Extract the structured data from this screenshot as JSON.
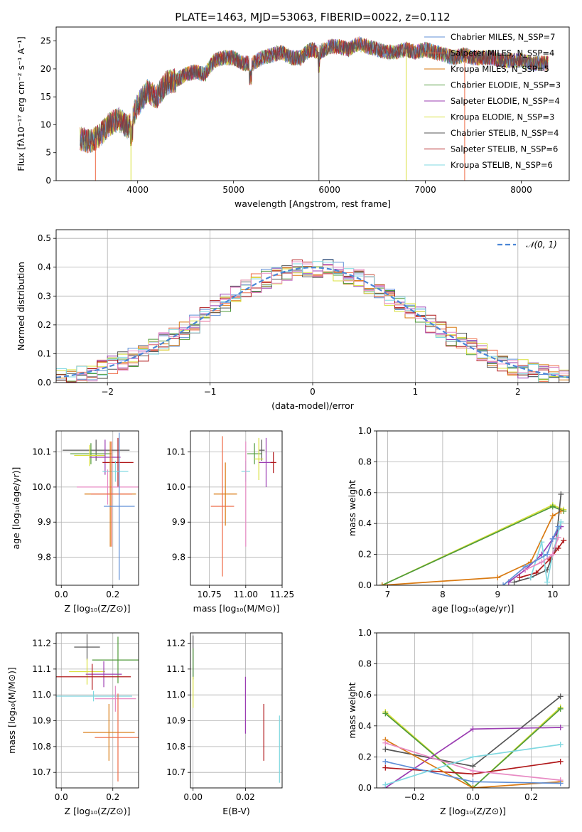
{
  "colors": {
    "chabrier_miles": "#5f8fd6",
    "salpeter_miles": "#ee6b47",
    "kroupa_miles": "#d97a12",
    "chabrier_elodie": "#4f9a3a",
    "salpeter_elodie": "#9b3db2",
    "kroupa_elodie": "#d8e03a",
    "chabrier_stelib": "#555555",
    "salpeter_stelib": "#b0181a",
    "kroupa_stelib": "#7fd8e0",
    "pink": "#e88bc4",
    "gaussian": "#4a86d6"
  },
  "chart_data": [
    {
      "type": "line",
      "title": "PLATE=1463, MJD=53063, FIBERID=0022, z=0.112",
      "xlabel": "wavelength [Angstrom, rest frame]",
      "ylabel": "Flux [fλ10⁻¹⁷ erg cm⁻² s⁻¹ A⁻¹]",
      "xlim": [
        3150,
        8500
      ],
      "ylim": [
        0,
        27.5
      ],
      "xticks": [
        "4000",
        "5000",
        "6000",
        "7000",
        "8000"
      ],
      "yticks": [
        "0",
        "5",
        "10",
        "15",
        "20",
        "25"
      ],
      "legend": "top-right",
      "legend_entries": [
        "Chabrier MILES, N_SSP=7",
        "Salpeter MILES, N_SSP=4",
        "Kroupa MILES, N_SSP=5",
        "Chabrier ELODIE, N_SSP=3",
        "Salpeter ELODIE, N_SSP=4",
        "Kroupa ELODIE, N_SSP=3",
        "Chabrier STELIB, N_SSP=4",
        "Salpeter STELIB, N_SSP=6",
        "Kroupa STELIB, N_SSP=6"
      ],
      "spectrum_envelope": {
        "x": [
          3400,
          3500,
          3600,
          3700,
          3800,
          3900,
          4000,
          4100,
          4200,
          4300,
          4400,
          4500,
          4600,
          4700,
          4800,
          4900,
          5000,
          5100,
          5200,
          5300,
          5400,
          5500,
          5600,
          5700,
          5800,
          5900,
          6000,
          6100,
          6200,
          6300,
          6400,
          6500,
          6600,
          6700,
          6800,
          6900,
          7000,
          7100,
          7200,
          7300,
          7400,
          7500,
          7600,
          7700,
          7800,
          7900,
          8000,
          8100,
          8200,
          8280
        ],
        "y": [
          7.5,
          7.0,
          8.0,
          10.0,
          11.0,
          9.5,
          13.5,
          16.0,
          15.0,
          17.5,
          18.0,
          19.0,
          19.5,
          19.0,
          21.5,
          22.0,
          22.0,
          21.0,
          21.0,
          22.0,
          22.5,
          23.0,
          22.0,
          22.0,
          23.5,
          23.0,
          24.0,
          24.0,
          23.5,
          24.5,
          24.0,
          23.5,
          23.0,
          23.0,
          23.5,
          23.0,
          23.5,
          23.0,
          22.5,
          22.0,
          22.5,
          22.0,
          22.0,
          22.0,
          21.5,
          21.5,
          21.5,
          21.0,
          21.0,
          21.0
        ]
      }
    },
    {
      "type": "bar",
      "xlabel": "(data-model)/error",
      "ylabel": "Normed distribution",
      "xlim": [
        -2.5,
        2.5
      ],
      "ylim": [
        0,
        0.53
      ],
      "xticks": [
        "−2",
        "−1",
        "0",
        "1",
        "2"
      ],
      "yticks": [
        "0.0",
        "0.1",
        "0.2",
        "0.3",
        "0.4",
        "0.5"
      ],
      "legend": "top-right",
      "legend_entries": [
        "𝒩(0, 1)"
      ],
      "bin_width": 0.1,
      "gaussian": {
        "mu": 0,
        "sigma": 1
      }
    },
    {
      "type": "scatter",
      "xlabel": "Z [log₁₀(Z/Z⊙)]",
      "ylabel": "age  [log₁₀(age/yr)]",
      "xlim": [
        -0.02,
        0.3
      ],
      "ylim": [
        9.72,
        10.16
      ],
      "xticks": [
        "0.0",
        "0.2"
      ],
      "yticks": [
        "9.8",
        "9.9",
        "10.0",
        "10.1"
      ],
      "points": [
        {
          "x": 0.135,
          "y": 10.105,
          "xerr": 0.13,
          "yerr": 0.03
        },
        {
          "x": 0.115,
          "y": 10.095,
          "xerr": 0.08,
          "yerr": 0.03
        },
        {
          "x": 0.11,
          "y": 10.09,
          "xerr": 0.06,
          "yerr": 0.03
        },
        {
          "x": 0.17,
          "y": 10.085,
          "xerr": 0.06,
          "yerr": 0.05
        },
        {
          "x": 0.22,
          "y": 10.07,
          "xerr": 0.06,
          "yerr": 0.07
        },
        {
          "x": 0.21,
          "y": 10.045,
          "xerr": 0.05,
          "yerr": 0.03
        },
        {
          "x": 0.18,
          "y": 10.0,
          "xerr": 0.12,
          "yerr": 0.05
        },
        {
          "x": 0.19,
          "y": 9.98,
          "xerr": 0.1,
          "yerr": 0.15
        },
        {
          "x": 0.195,
          "y": 9.98,
          "xerr": 0.08,
          "yerr": 0.15
        },
        {
          "x": 0.225,
          "y": 9.945,
          "xerr": 0.06,
          "yerr": 0.21
        }
      ]
    },
    {
      "type": "scatter",
      "xlabel": "mass [log₁₀(M/M⊙)]",
      "xlim": [
        10.62,
        11.25
      ],
      "ylim": [
        9.72,
        10.16
      ],
      "xticks": [
        "10.75",
        "11.00",
        "11.25"
      ],
      "yticks": [
        "9.8",
        "9.9",
        "10.0",
        "10.1"
      ],
      "points": [
        {
          "x": 11.11,
          "y": 10.105,
          "xerr": 0.02,
          "yerr": 0.03
        },
        {
          "x": 11.06,
          "y": 10.095,
          "xerr": 0.05,
          "yerr": 0.03
        },
        {
          "x": 11.09,
          "y": 10.08,
          "xerr": 0.03,
          "yerr": 0.06
        },
        {
          "x": 11.14,
          "y": 10.07,
          "xerr": 0.05,
          "yerr": 0.07
        },
        {
          "x": 11.19,
          "y": 10.07,
          "xerr": 0.02,
          "yerr": 0.03
        },
        {
          "x": 11.0,
          "y": 10.045,
          "xerr": 0.03,
          "yerr": 0.03
        },
        {
          "x": 11.0,
          "y": 9.98,
          "xerr": 0.0,
          "yerr": 0.15
        },
        {
          "x": 10.86,
          "y": 9.98,
          "xerr": 0.08,
          "yerr": 0.09
        },
        {
          "x": 10.84,
          "y": 9.945,
          "xerr": 0.08,
          "yerr": 0.2
        }
      ]
    },
    {
      "type": "line",
      "xlabel": "age  [log₁₀(age/yr)]",
      "ylabel": "mass weight",
      "xlim": [
        6.8,
        10.3
      ],
      "ylim": [
        0,
        1.0
      ],
      "xticks": [
        "7",
        "8",
        "9",
        "10"
      ],
      "yticks": [
        "0.0",
        "0.2",
        "0.4",
        "0.6",
        "0.8",
        "1.0"
      ],
      "series": [
        {
          "color_key": "kroupa_elodie",
          "x": [
            6.9,
            10.0,
            10.2
          ],
          "y": [
            0.0,
            0.52,
            0.49
          ]
        },
        {
          "color_key": "chabrier_elodie",
          "x": [
            6.9,
            10.0,
            10.2
          ],
          "y": [
            0.0,
            0.51,
            0.48
          ]
        },
        {
          "color_key": "kroupa_miles",
          "x": [
            6.9,
            9.0,
            9.6,
            10.0,
            10.15
          ],
          "y": [
            0.0,
            0.05,
            0.15,
            0.45,
            0.48
          ]
        },
        {
          "color_key": "chabrier_stelib",
          "x": [
            9.3,
            9.6,
            9.9,
            10.05,
            10.15
          ],
          "y": [
            0.02,
            0.05,
            0.1,
            0.24,
            0.59
          ]
        },
        {
          "color_key": "salpeter_elodie",
          "x": [
            9.2,
            9.5,
            9.8,
            10.0,
            10.15
          ],
          "y": [
            0.02,
            0.1,
            0.2,
            0.3,
            0.38
          ]
        },
        {
          "color_key": "salpeter_stelib",
          "x": [
            9.4,
            9.7,
            9.95,
            10.1,
            10.2
          ],
          "y": [
            0.05,
            0.08,
            0.17,
            0.24,
            0.29
          ]
        },
        {
          "color_key": "kroupa_stelib",
          "x": [
            9.6,
            9.8,
            9.9,
            10.0,
            10.15
          ],
          "y": [
            0.05,
            0.28,
            0.02,
            0.2,
            0.41
          ]
        },
        {
          "color_key": "chabrier_miles",
          "x": [
            9.1,
            9.5,
            9.9,
            10.0,
            10.1
          ],
          "y": [
            0.0,
            0.12,
            0.2,
            0.3,
            0.38
          ]
        },
        {
          "color_key": "pink",
          "x": [
            9.5,
            9.8,
            10.0,
            10.1
          ],
          "y": [
            0.1,
            0.15,
            0.2,
            0.31
          ]
        }
      ]
    },
    {
      "type": "scatter",
      "xlabel": "Z [log₁₀(Z/Z⊙)]",
      "ylabel": "mass [log₁₀(M/M⊙)]",
      "xlim": [
        -0.02,
        0.3
      ],
      "ylim": [
        10.64,
        11.24
      ],
      "xticks": [
        "0.0",
        "0.2"
      ],
      "yticks": [
        "10.7",
        "10.8",
        "10.9",
        "11.0",
        "11.1",
        "11.2"
      ],
      "points": [
        {
          "x": 0.1,
          "y": 11.185,
          "xerr": 0.05,
          "yerr": 0.05
        },
        {
          "x": 0.22,
          "y": 11.135,
          "xerr": 0.1,
          "yerr": 0.09
        },
        {
          "x": 0.1,
          "y": 11.09,
          "xerr": 0.07,
          "yerr": 0.05
        },
        {
          "x": 0.165,
          "y": 11.08,
          "xerr": 0.07,
          "yerr": 0.05
        },
        {
          "x": 0.12,
          "y": 11.07,
          "xerr": 0.15,
          "yerr": 0.05
        },
        {
          "x": 0.125,
          "y": 10.995,
          "xerr": 0.15,
          "yerr": 0.02
        },
        {
          "x": 0.21,
          "y": 10.985,
          "xerr": 0.08,
          "yerr": 0.05
        },
        {
          "x": 0.185,
          "y": 10.855,
          "xerr": 0.1,
          "yerr": 0.11
        },
        {
          "x": 0.22,
          "y": 10.835,
          "xerr": 0.09,
          "yerr": 0.17
        }
      ]
    },
    {
      "type": "scatter",
      "xlabel": "E(B-V)",
      "xlim": [
        -0.001,
        0.034
      ],
      "ylim": [
        10.64,
        11.24
      ],
      "xticks": [
        "0.00",
        "0.02"
      ],
      "yticks": [
        "10.7",
        "10.8",
        "10.9",
        "11.0",
        "11.1",
        "11.2"
      ],
      "points": [
        {
          "x": 0.0,
          "y": 11.15,
          "xerr": 0.0,
          "yerr": 0.08
        },
        {
          "x": 0.0,
          "y": 11.12,
          "xerr": 0.0,
          "yerr": 0.06
        },
        {
          "x": 0.0,
          "y": 11.01,
          "xerr": 0.0,
          "yerr": 0.06
        },
        {
          "x": 0.02,
          "y": 10.96,
          "xerr": 0.0,
          "yerr": 0.11
        },
        {
          "x": 0.027,
          "y": 10.855,
          "xerr": 0.0,
          "yerr": 0.11
        },
        {
          "x": 0.033,
          "y": 10.79,
          "xerr": 0.0,
          "yerr": 0.13
        }
      ]
    },
    {
      "type": "line",
      "xlabel": "Z [log₁₀(Z/Z⊙)]",
      "ylabel": "mass weight",
      "xlim": [
        -0.33,
        0.33
      ],
      "ylim": [
        0,
        1.0
      ],
      "xticks": [
        "−0.2",
        "0.0",
        "0.2"
      ],
      "yticks": [
        "0.0",
        "0.2",
        "0.4",
        "0.6",
        "0.8",
        "1.0"
      ],
      "series": [
        {
          "color_key": "kroupa_elodie",
          "x": [
            -0.3,
            0.0,
            0.3
          ],
          "y": [
            0.49,
            0.0,
            0.52
          ]
        },
        {
          "color_key": "chabrier_elodie",
          "x": [
            -0.3,
            0.0,
            0.3
          ],
          "y": [
            0.48,
            0.0,
            0.51
          ]
        },
        {
          "color_key": "chabrier_stelib",
          "x": [
            -0.3,
            0.0,
            0.3
          ],
          "y": [
            0.25,
            0.14,
            0.59
          ]
        },
        {
          "color_key": "salpeter_elodie",
          "x": [
            -0.3,
            0.0,
            0.3
          ],
          "y": [
            0.0,
            0.38,
            0.39
          ]
        },
        {
          "color_key": "salpeter_stelib",
          "x": [
            -0.3,
            0.0,
            0.3
          ],
          "y": [
            0.13,
            0.09,
            0.17
          ]
        },
        {
          "color_key": "kroupa_miles",
          "x": [
            -0.3,
            0.0,
            0.3
          ],
          "y": [
            0.31,
            0.0,
            0.04
          ]
        },
        {
          "color_key": "pink",
          "x": [
            -0.3,
            0.0,
            0.3
          ],
          "y": [
            0.29,
            0.11,
            0.05
          ]
        },
        {
          "color_key": "chabrier_miles",
          "x": [
            -0.3,
            0.0,
            0.3
          ],
          "y": [
            0.17,
            0.04,
            0.03
          ]
        },
        {
          "color_key": "kroupa_stelib",
          "x": [
            -0.3,
            0.0,
            0.3
          ],
          "y": [
            0.02,
            0.2,
            0.28
          ]
        }
      ]
    }
  ]
}
